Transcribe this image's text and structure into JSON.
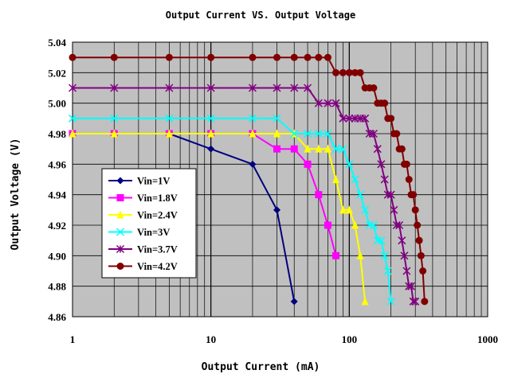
{
  "chart_data": {
    "type": "line",
    "title": "Output Current VS. Output Voltage",
    "xlabel": "Output Current (mA)",
    "ylabel": "Output Voltage (V)",
    "x_scale": "log",
    "xlim": [
      1,
      1000
    ],
    "ylim": [
      4.86,
      5.04
    ],
    "x_ticks": [
      "1",
      "10",
      "100",
      "1000"
    ],
    "y_ticks": [
      "4.86",
      "4.88",
      "4.90",
      "4.92",
      "4.94",
      "4.96",
      "4.98",
      "5.00",
      "5.02",
      "5.04"
    ],
    "grid": true,
    "legend_position": "left-center",
    "plot_background": "#c0c0c0",
    "series": [
      {
        "name": "Vin=1V",
        "color": "#000080",
        "marker": "diamond",
        "x": [
          1,
          5,
          10,
          20,
          30,
          40
        ],
        "y": [
          4.98,
          4.98,
          4.97,
          4.96,
          4.93,
          4.87
        ]
      },
      {
        "name": "Vin=1.8V",
        "color": "#ff00ff",
        "marker": "square",
        "x": [
          1,
          2,
          5,
          10,
          20,
          30,
          40,
          50,
          60,
          70,
          80
        ],
        "y": [
          4.98,
          4.98,
          4.98,
          4.98,
          4.98,
          4.97,
          4.97,
          4.96,
          4.94,
          4.92,
          4.9
        ]
      },
      {
        "name": "Vin=2.4V",
        "color": "#ffff00",
        "marker": "triangle",
        "x": [
          1,
          2,
          5,
          10,
          20,
          30,
          40,
          50,
          60,
          70,
          80,
          90,
          100,
          110,
          120,
          130
        ],
        "y": [
          4.98,
          4.98,
          4.98,
          4.98,
          4.98,
          4.98,
          4.98,
          4.97,
          4.97,
          4.97,
          4.95,
          4.93,
          4.93,
          4.92,
          4.9,
          4.87
        ]
      },
      {
        "name": "Vin=3V",
        "color": "#00ffff",
        "marker": "cross",
        "x": [
          1,
          2,
          5,
          10,
          20,
          30,
          40,
          50,
          60,
          70,
          80,
          90,
          100,
          110,
          120,
          130,
          140,
          150,
          160,
          170,
          180,
          190,
          200
        ],
        "y": [
          4.99,
          4.99,
          4.99,
          4.99,
          4.99,
          4.99,
          4.98,
          4.98,
          4.98,
          4.98,
          4.97,
          4.97,
          4.96,
          4.95,
          4.94,
          4.93,
          4.92,
          4.92,
          4.91,
          4.91,
          4.9,
          4.89,
          4.87
        ]
      },
      {
        "name": "Vin=3.7V",
        "color": "#800080",
        "marker": "star",
        "x": [
          1,
          2,
          5,
          10,
          20,
          30,
          40,
          50,
          60,
          70,
          80,
          90,
          100,
          110,
          120,
          130,
          140,
          150,
          160,
          170,
          180,
          190,
          200,
          210,
          220,
          230,
          240,
          250,
          260,
          270,
          280,
          290,
          300
        ],
        "y": [
          5.01,
          5.01,
          5.01,
          5.01,
          5.01,
          5.01,
          5.01,
          5.01,
          5.0,
          5.0,
          5.0,
          4.99,
          4.99,
          4.99,
          4.99,
          4.99,
          4.98,
          4.98,
          4.97,
          4.96,
          4.95,
          4.94,
          4.94,
          4.93,
          4.92,
          4.92,
          4.91,
          4.9,
          4.89,
          4.88,
          4.88,
          4.87,
          4.87
        ]
      },
      {
        "name": "Vin=4.2V",
        "color": "#800000",
        "marker": "circle",
        "x": [
          1,
          2,
          5,
          10,
          20,
          30,
          40,
          50,
          60,
          70,
          80,
          90,
          100,
          110,
          120,
          130,
          140,
          150,
          160,
          170,
          180,
          190,
          200,
          210,
          220,
          230,
          240,
          250,
          260,
          270,
          280,
          290,
          300,
          310,
          320,
          330,
          340,
          350
        ],
        "y": [
          5.03,
          5.03,
          5.03,
          5.03,
          5.03,
          5.03,
          5.03,
          5.03,
          5.03,
          5.03,
          5.02,
          5.02,
          5.02,
          5.02,
          5.02,
          5.01,
          5.01,
          5.01,
          5.0,
          5.0,
          5.0,
          4.99,
          4.99,
          4.98,
          4.98,
          4.97,
          4.97,
          4.96,
          4.96,
          4.95,
          4.94,
          4.94,
          4.93,
          4.92,
          4.91,
          4.9,
          4.89,
          4.87
        ]
      }
    ]
  }
}
